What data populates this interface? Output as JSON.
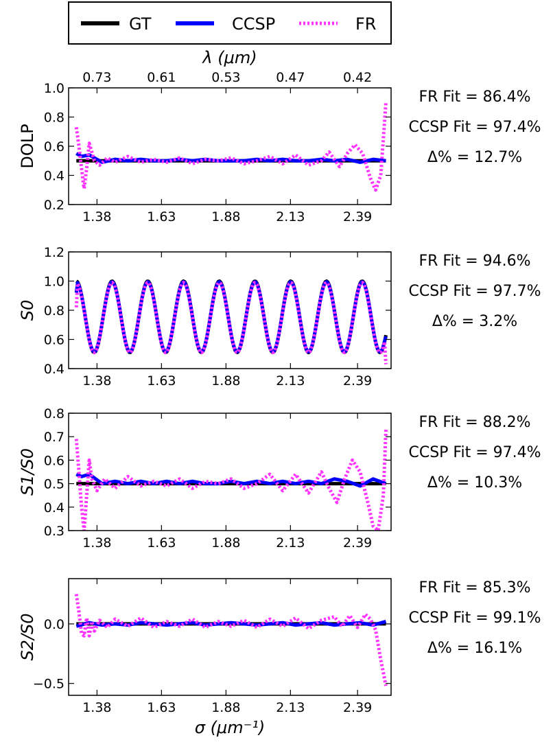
{
  "legend": {
    "entries": [
      {
        "label": "GT",
        "color": "#000000",
        "style": "solid"
      },
      {
        "label": "CCSP",
        "color": "#0000ff",
        "style": "solid"
      },
      {
        "label": "FR",
        "color": "#ff33ff",
        "style": "dotted"
      }
    ]
  },
  "top_axis": {
    "label": "λ (μm)",
    "tick_labels": [
      "0.73",
      "0.61",
      "0.53",
      "0.47",
      "0.42"
    ]
  },
  "bottom_axis": {
    "label": "σ (μm⁻¹)"
  },
  "chart_data": [
    {
      "type": "line",
      "ylabel": "DOLP",
      "ylim": [
        0.2,
        1.0
      ],
      "yticks": [
        0.2,
        0.4,
        0.6,
        0.8,
        1.0
      ],
      "ytick_labels": [
        "0.2",
        "0.4",
        "0.6",
        "0.8",
        "1.0"
      ],
      "xlim": [
        1.27,
        2.52
      ],
      "xticks": [
        1.38,
        1.63,
        1.88,
        2.13,
        2.39
      ],
      "xtick_labels": [
        "1.38",
        "1.63",
        "1.88",
        "2.13",
        "2.39"
      ],
      "series": [
        {
          "name": "GT",
          "x": [
            1.3,
            2.5
          ],
          "y": [
            0.5,
            0.5
          ]
        },
        {
          "name": "CCSP",
          "x": [
            1.3,
            1.32,
            1.35,
            1.4,
            1.45,
            1.5,
            1.55,
            1.6,
            1.65,
            1.7,
            1.75,
            1.8,
            1.85,
            1.9,
            1.95,
            2.0,
            2.05,
            2.1,
            2.15,
            2.2,
            2.25,
            2.3,
            2.35,
            2.4,
            2.45,
            2.5
          ],
          "y": [
            0.55,
            0.53,
            0.54,
            0.49,
            0.51,
            0.5,
            0.51,
            0.5,
            0.5,
            0.51,
            0.5,
            0.51,
            0.5,
            0.5,
            0.5,
            0.51,
            0.5,
            0.51,
            0.5,
            0.5,
            0.51,
            0.5,
            0.51,
            0.49,
            0.51,
            0.5
          ]
        },
        {
          "name": "FR",
          "x": [
            1.3,
            1.31,
            1.32,
            1.33,
            1.34,
            1.35,
            1.37,
            1.39,
            1.42,
            1.45,
            1.5,
            1.55,
            1.6,
            1.65,
            1.7,
            1.75,
            1.8,
            1.85,
            1.9,
            1.95,
            2.0,
            2.05,
            2.1,
            2.15,
            2.2,
            2.25,
            2.28,
            2.32,
            2.35,
            2.38,
            2.41,
            2.44,
            2.46,
            2.48,
            2.5
          ],
          "y": [
            0.73,
            0.6,
            0.45,
            0.31,
            0.45,
            0.62,
            0.5,
            0.47,
            0.52,
            0.49,
            0.53,
            0.49,
            0.51,
            0.49,
            0.52,
            0.48,
            0.51,
            0.5,
            0.52,
            0.48,
            0.5,
            0.53,
            0.48,
            0.54,
            0.47,
            0.5,
            0.56,
            0.46,
            0.55,
            0.61,
            0.55,
            0.38,
            0.3,
            0.4,
            0.9
          ]
        }
      ],
      "annotations": [
        "FR Fit = 86.4%",
        "CCSP Fit = 97.4%",
        "Δ% = 12.7%"
      ]
    },
    {
      "type": "line",
      "ylabel": "S0",
      "ylim": [
        0.4,
        1.2
      ],
      "yticks": [
        0.4,
        0.6,
        0.8,
        1.0,
        1.2
      ],
      "ytick_labels": [
        "0.4",
        "0.6",
        "0.8",
        "1.0",
        "1.2"
      ],
      "xlim": [
        1.27,
        2.52
      ],
      "xticks": [
        1.38,
        1.63,
        1.88,
        2.13,
        2.39
      ],
      "xtick_labels": [
        "1.38",
        "1.63",
        "1.88",
        "2.13",
        "2.39"
      ],
      "series": [
        {
          "name": "GT",
          "oscillation": {
            "x_start": 1.3,
            "x_end": 2.5,
            "mean": 0.755,
            "amplitude": 0.245,
            "period": 0.1385,
            "phase_x": 1.3,
            "step": 0.005
          },
          "x": [],
          "y": []
        },
        {
          "name": "CCSP",
          "oscillation": {
            "x_start": 1.3,
            "x_end": 2.5,
            "mean": 0.755,
            "amplitude": 0.24,
            "period": 0.1385,
            "phase_x": 1.3,
            "step": 0.005,
            "start_value": 0.92,
            "end_value": 0.62
          },
          "x": [],
          "y": []
        },
        {
          "name": "FR",
          "oscillation": {
            "x_start": 1.3,
            "x_end": 2.5,
            "mean": 0.75,
            "amplitude": 0.24,
            "period": 0.1385,
            "phase_x": 1.3,
            "step": 0.005,
            "start_value": 0.82,
            "end_value": 0.43
          },
          "x": [],
          "y": []
        }
      ],
      "annotations": [
        "FR Fit = 94.6%",
        "CCSP Fit = 97.7%",
        "Δ% = 3.2%"
      ]
    },
    {
      "type": "line",
      "ylabel": "S1/S0",
      "ylim": [
        0.3,
        0.8
      ],
      "yticks": [
        0.3,
        0.4,
        0.5,
        0.6,
        0.7,
        0.8
      ],
      "ytick_labels": [
        "0.3",
        "0.4",
        "0.5",
        "0.6",
        "0.7",
        "0.8"
      ],
      "xlim": [
        1.27,
        2.52
      ],
      "xticks": [
        1.38,
        1.63,
        1.88,
        2.13,
        2.39
      ],
      "xtick_labels": [
        "1.38",
        "1.63",
        "1.88",
        "2.13",
        "2.39"
      ],
      "series": [
        {
          "name": "GT",
          "x": [
            1.3,
            2.5
          ],
          "y": [
            0.5,
            0.5
          ]
        },
        {
          "name": "CCSP",
          "x": [
            1.3,
            1.32,
            1.35,
            1.4,
            1.45,
            1.5,
            1.55,
            1.6,
            1.65,
            1.7,
            1.75,
            1.8,
            1.85,
            1.9,
            1.95,
            2.0,
            2.05,
            2.1,
            2.15,
            2.2,
            2.25,
            2.3,
            2.35,
            2.4,
            2.45,
            2.5
          ],
          "y": [
            0.54,
            0.53,
            0.54,
            0.5,
            0.51,
            0.5,
            0.51,
            0.5,
            0.51,
            0.5,
            0.51,
            0.5,
            0.5,
            0.51,
            0.5,
            0.51,
            0.5,
            0.51,
            0.5,
            0.51,
            0.5,
            0.52,
            0.51,
            0.49,
            0.52,
            0.5
          ]
        },
        {
          "name": "FR",
          "x": [
            1.3,
            1.31,
            1.32,
            1.33,
            1.34,
            1.35,
            1.36,
            1.38,
            1.41,
            1.45,
            1.5,
            1.55,
            1.6,
            1.65,
            1.7,
            1.75,
            1.8,
            1.85,
            1.9,
            1.95,
            2.0,
            2.05,
            2.1,
            2.15,
            2.2,
            2.25,
            2.28,
            2.31,
            2.34,
            2.37,
            2.4,
            2.43,
            2.45,
            2.47,
            2.49,
            2.5
          ],
          "y": [
            0.69,
            0.55,
            0.4,
            0.3,
            0.45,
            0.6,
            0.52,
            0.47,
            0.52,
            0.48,
            0.53,
            0.49,
            0.51,
            0.49,
            0.52,
            0.48,
            0.51,
            0.5,
            0.52,
            0.48,
            0.5,
            0.54,
            0.47,
            0.54,
            0.46,
            0.55,
            0.48,
            0.42,
            0.52,
            0.6,
            0.55,
            0.42,
            0.32,
            0.3,
            0.45,
            0.73
          ]
        }
      ],
      "annotations": [
        "FR Fit = 88.2%",
        "CCSP Fit = 97.4%",
        "Δ% = 10.3%"
      ]
    },
    {
      "type": "line",
      "ylabel": "S2/S0",
      "ylim": [
        -0.6,
        0.38
      ],
      "yticks": [
        -0.5,
        0.0
      ],
      "ytick_labels": [
        "−0.5",
        "0.0"
      ],
      "xlim": [
        1.27,
        2.52
      ],
      "xticks": [
        1.38,
        1.63,
        1.88,
        2.13,
        2.39
      ],
      "xtick_labels": [
        "1.38",
        "1.63",
        "1.88",
        "2.13",
        "2.39"
      ],
      "series": [
        {
          "name": "GT",
          "x": [
            1.3,
            2.5
          ],
          "y": [
            0.0,
            0.0
          ]
        },
        {
          "name": "CCSP",
          "x": [
            1.3,
            1.35,
            1.4,
            1.45,
            1.5,
            1.55,
            1.6,
            1.65,
            1.7,
            1.75,
            1.8,
            1.85,
            1.9,
            1.95,
            2.0,
            2.05,
            2.1,
            2.15,
            2.2,
            2.25,
            2.3,
            2.35,
            2.4,
            2.45,
            2.5
          ],
          "y": [
            -0.02,
            0.01,
            -0.01,
            0.0,
            -0.01,
            0.01,
            0.0,
            -0.01,
            0.0,
            0.01,
            -0.01,
            0.0,
            0.01,
            0.0,
            -0.01,
            0.0,
            0.01,
            -0.01,
            0.0,
            0.01,
            -0.01,
            0.0,
            0.01,
            -0.01,
            0.02
          ]
        },
        {
          "name": "FR",
          "x": [
            1.3,
            1.31,
            1.32,
            1.33,
            1.34,
            1.35,
            1.36,
            1.37,
            1.39,
            1.42,
            1.45,
            1.5,
            1.55,
            1.6,
            1.65,
            1.7,
            1.75,
            1.8,
            1.85,
            1.9,
            1.95,
            2.0,
            2.05,
            2.1,
            2.15,
            2.2,
            2.25,
            2.3,
            2.33,
            2.36,
            2.39,
            2.42,
            2.44,
            2.46,
            2.48,
            2.5
          ],
          "y": [
            0.25,
            0.1,
            -0.08,
            -0.1,
            0.05,
            -0.1,
            0.02,
            -0.06,
            0.03,
            -0.03,
            0.04,
            -0.02,
            0.05,
            -0.03,
            0.02,
            -0.02,
            0.04,
            -0.03,
            0.02,
            -0.02,
            0.03,
            -0.03,
            0.04,
            -0.02,
            0.05,
            -0.04,
            0.03,
            0.06,
            -0.02,
            0.07,
            -0.03,
            0.08,
            0.04,
            -0.05,
            -0.3,
            -0.52
          ]
        }
      ],
      "annotations": [
        "FR Fit = 85.3%",
        "CCSP Fit = 99.1%",
        "Δ% = 16.1%"
      ]
    }
  ]
}
